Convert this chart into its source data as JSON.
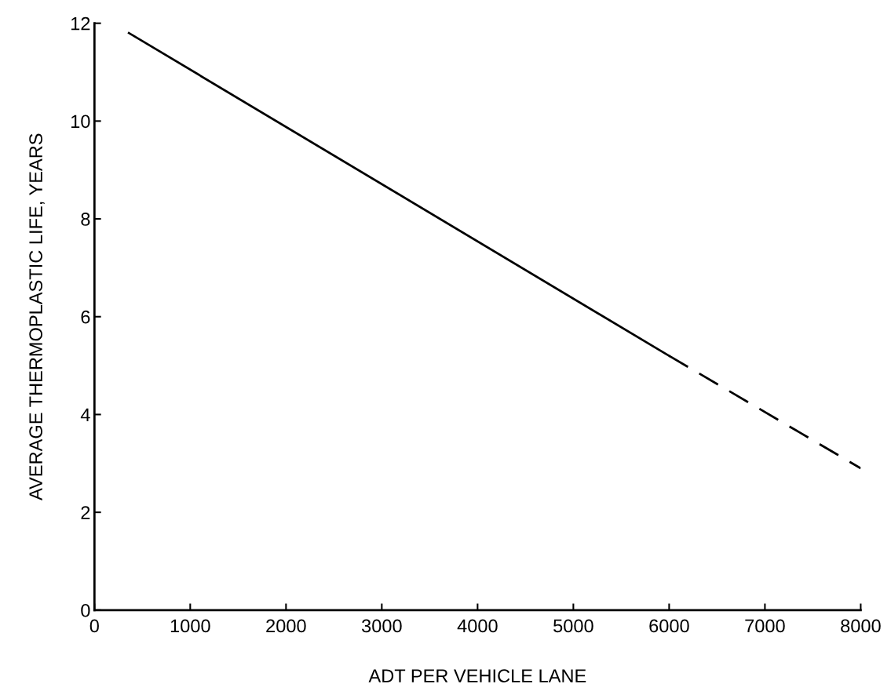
{
  "chart_data": {
    "type": "line",
    "xlabel": "ADT PER VEHICLE LANE",
    "ylabel": "AVERAGE THERMOPLASTIC LIFE, YEARS",
    "xlim": [
      0,
      8000
    ],
    "ylim": [
      0,
      12
    ],
    "xticks": [
      0,
      1000,
      2000,
      3000,
      4000,
      5000,
      6000,
      7000,
      8000
    ],
    "yticks": [
      0,
      2,
      4,
      6,
      8,
      10,
      12
    ],
    "series": [
      {
        "color": "#000000",
        "x": [
          360,
          6000
        ],
        "values": [
          11.8,
          5.2
        ],
        "line_style": "solid"
      },
      {
        "color": "#000000",
        "x": [
          6000,
          8000
        ],
        "values": [
          5.2,
          2.9
        ],
        "line_style": "dashed"
      }
    ],
    "grid": false,
    "legend": false,
    "marker": "none"
  }
}
